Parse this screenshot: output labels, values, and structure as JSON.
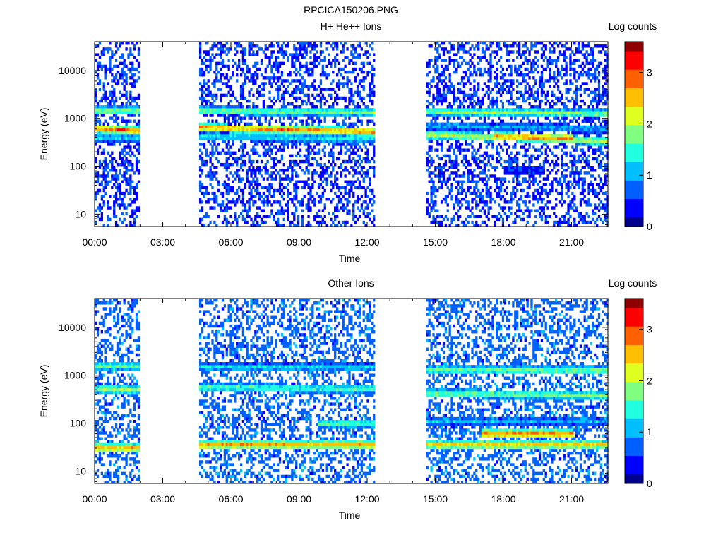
{
  "page": {
    "title": "RPCICA150206.PNG"
  },
  "colors": {
    "colormap": [
      "#00008f",
      "#0000ff",
      "#0060ff",
      "#00bfff",
      "#20ffdf",
      "#80ff80",
      "#dfff20",
      "#ffbf00",
      "#ff6000",
      "#ff0000",
      "#8f0000"
    ],
    "frame": "#000000",
    "background": "#ffffff"
  },
  "chart_data": [
    {
      "type": "heatmap",
      "title": "H+ He++ Ions",
      "xlabel": "Time",
      "ylabel": "Energy (eV)",
      "x_ticks": [
        "00:00",
        "03:00",
        "06:00",
        "09:00",
        "12:00",
        "15:00",
        "18:00",
        "21:00"
      ],
      "y_ticks": [
        "10",
        "100",
        "1000",
        "10000"
      ],
      "yscale": "log",
      "xlim_hours": [
        0,
        22.6
      ],
      "ylim": [
        5.5,
        40000
      ],
      "colorbar": {
        "label": "Log counts",
        "ticks": [
          "0",
          "1",
          "2",
          "3"
        ],
        "range": [
          0,
          3.6
        ]
      },
      "data_intervals_hours": [
        [
          0,
          1.95
        ],
        [
          4.6,
          12.3
        ],
        [
          14.6,
          22.6
        ]
      ],
      "bands": [
        {
          "from": 0.0,
          "to": 1.95,
          "energy_start": 1450,
          "energy_end": 1450,
          "log_counts": 2.0
        },
        {
          "from": 0.0,
          "to": 1.95,
          "energy_start": 620,
          "energy_end": 540,
          "log_counts": 3.0
        },
        {
          "from": 0.0,
          "to": 1.95,
          "energy_start": 400,
          "energy_end": 400,
          "log_counts": 1.3
        },
        {
          "from": 4.6,
          "to": 12.3,
          "energy_start": 1450,
          "energy_end": 1350,
          "log_counts": 1.9
        },
        {
          "from": 4.6,
          "to": 12.3,
          "energy_start": 640,
          "energy_end": 520,
          "log_counts": 2.9
        },
        {
          "from": 4.6,
          "to": 12.3,
          "energy_start": 420,
          "energy_end": 380,
          "log_counts": 1.4
        },
        {
          "from": 14.6,
          "to": 22.6,
          "energy_start": 1400,
          "energy_end": 1250,
          "log_counts": 2.0
        },
        {
          "from": 14.6,
          "to": 17.5,
          "energy_start": 460,
          "energy_end": 400,
          "log_counts": 2.2
        },
        {
          "from": 17.5,
          "to": 21.0,
          "energy_start": 420,
          "energy_end": 380,
          "log_counts": 2.9
        },
        {
          "from": 21.0,
          "to": 22.6,
          "energy_start": 360,
          "energy_end": 330,
          "log_counts": 2.2
        },
        {
          "from": 14.6,
          "to": 22.6,
          "energy_start": 700,
          "energy_end": 600,
          "log_counts": 1.1
        },
        {
          "from": 18.0,
          "to": 19.8,
          "energy_start": 88,
          "energy_end": 88,
          "log_counts": 0.7
        }
      ],
      "background_log_counts": 0.3
    },
    {
      "type": "heatmap",
      "title": "Other Ions",
      "xlabel": "Time",
      "ylabel": "Energy (eV)",
      "x_ticks": [
        "00:00",
        "03:00",
        "06:00",
        "09:00",
        "12:00",
        "15:00",
        "18:00",
        "21:00"
      ],
      "y_ticks": [
        "10",
        "100",
        "1000",
        "10000"
      ],
      "yscale": "log",
      "xlim_hours": [
        0,
        22.6
      ],
      "ylim": [
        5.5,
        40000
      ],
      "colorbar": {
        "label": "Log counts",
        "ticks": [
          "0",
          "1",
          "2",
          "3"
        ],
        "range": [
          0,
          3.6
        ]
      },
      "data_intervals_hours": [
        [
          0,
          1.95
        ],
        [
          4.6,
          12.3
        ],
        [
          14.6,
          22.6
        ]
      ],
      "bands": [
        {
          "from": 0.0,
          "to": 1.95,
          "energy_start": 1550,
          "energy_end": 1550,
          "log_counts": 1.8
        },
        {
          "from": 0.0,
          "to": 1.95,
          "energy_start": 520,
          "energy_end": 500,
          "log_counts": 2.0
        },
        {
          "from": 0.0,
          "to": 1.95,
          "energy_start": 30,
          "energy_end": 30,
          "log_counts": 2.8
        },
        {
          "from": 4.6,
          "to": 12.3,
          "energy_start": 1500,
          "energy_end": 1450,
          "log_counts": 1.3
        },
        {
          "from": 4.6,
          "to": 12.3,
          "energy_start": 560,
          "energy_end": 520,
          "log_counts": 1.7
        },
        {
          "from": 4.6,
          "to": 12.3,
          "energy_start": 35,
          "energy_end": 35,
          "log_counts": 2.7
        },
        {
          "from": 9.8,
          "to": 12.3,
          "energy_start": 100,
          "energy_end": 100,
          "log_counts": 1.8
        },
        {
          "from": 14.6,
          "to": 22.6,
          "energy_start": 1300,
          "energy_end": 1250,
          "log_counts": 1.9
        },
        {
          "from": 14.6,
          "to": 22.6,
          "energy_start": 420,
          "energy_end": 380,
          "log_counts": 1.9
        },
        {
          "from": 14.6,
          "to": 22.6,
          "energy_start": 110,
          "energy_end": 110,
          "log_counts": 1.1
        },
        {
          "from": 14.6,
          "to": 22.6,
          "energy_start": 35,
          "energy_end": 35,
          "log_counts": 2.6
        },
        {
          "from": 17.0,
          "to": 21.0,
          "energy_start": 60,
          "energy_end": 60,
          "log_counts": 3.0
        }
      ],
      "background_log_counts": 0.5
    }
  ]
}
